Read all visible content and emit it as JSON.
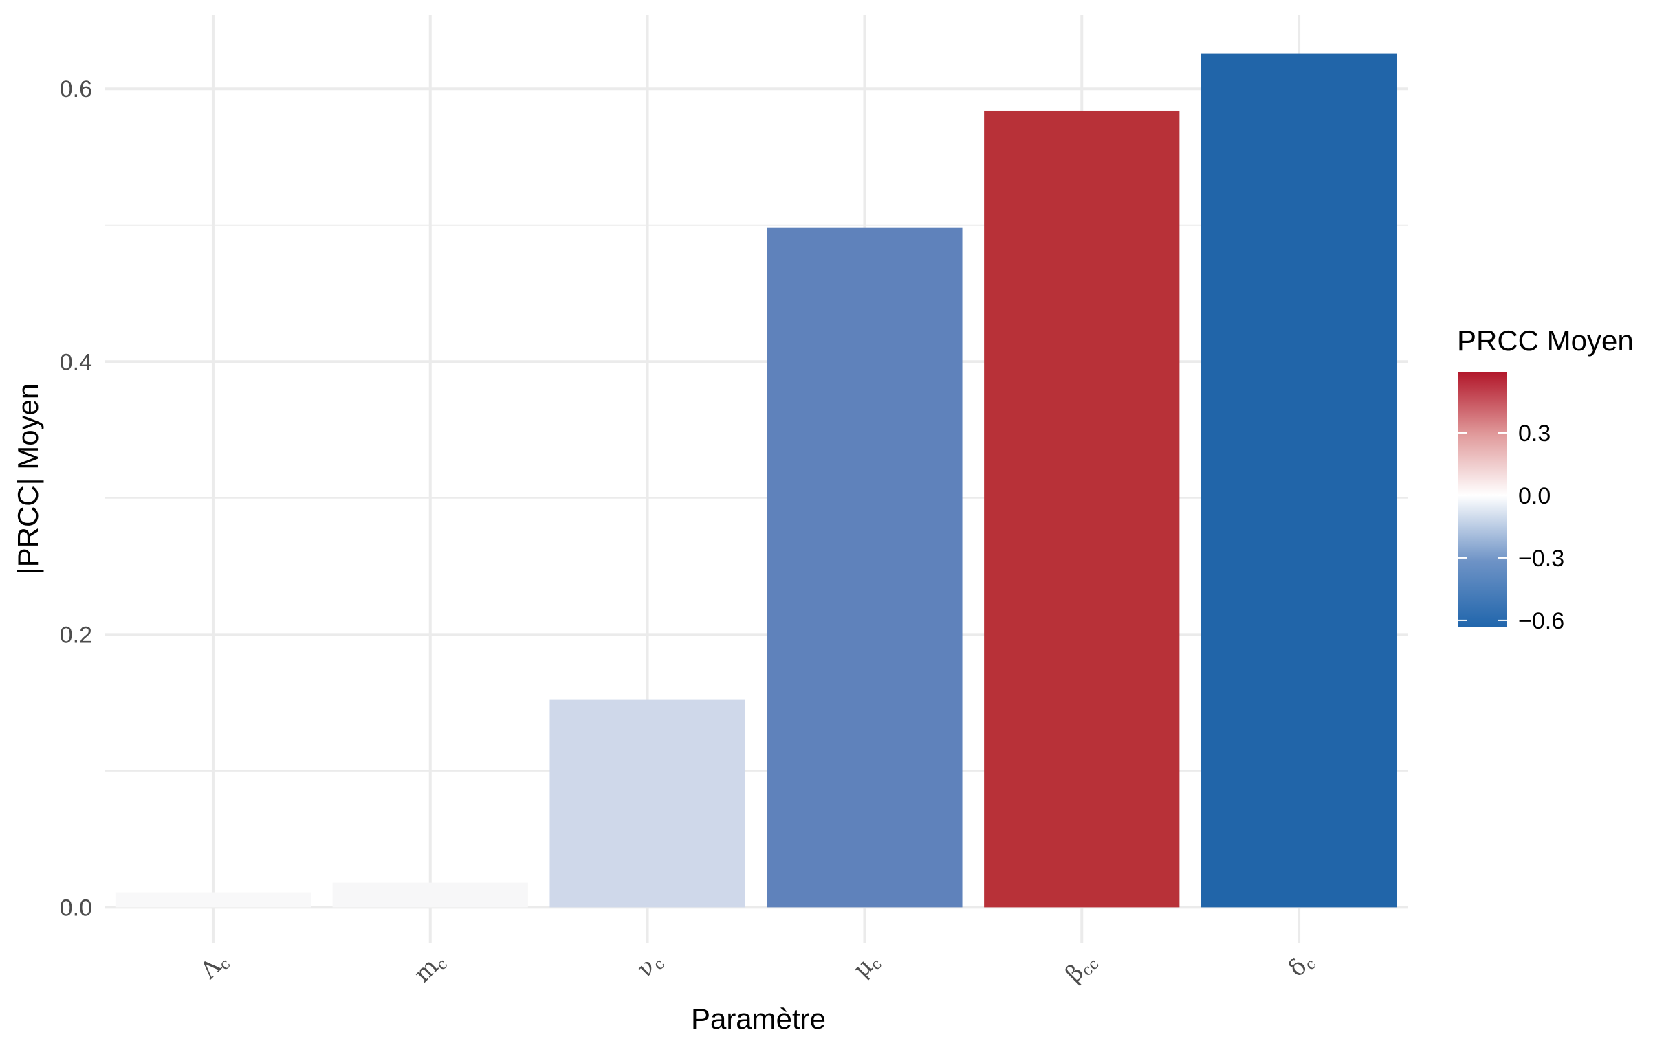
{
  "chart_data": {
    "type": "bar",
    "categories": [
      {
        "main": "Λ",
        "sub": "c"
      },
      {
        "main": "m",
        "sub": "c"
      },
      {
        "main": "ν",
        "sub": "c"
      },
      {
        "main": "μ",
        "sub": "c"
      },
      {
        "main": "β",
        "sub": "cc"
      },
      {
        "main": "δ",
        "sub": "c"
      }
    ],
    "values": [
      0.011,
      0.018,
      0.152,
      0.498,
      0.584,
      0.626
    ],
    "colors": [
      "#f8f8f9",
      "#f7f7f8",
      "#cfd8ea",
      "#5f82bb",
      "#b83138",
      "#2165a9"
    ],
    "xlabel": "Paramètre",
    "ylabel": "|PRCC| Moyen",
    "ylim": [
      -0.026,
      0.654
    ],
    "yticks": [
      0.0,
      0.2,
      0.4,
      0.6
    ],
    "ytick_labels": [
      "0.0",
      "0.2",
      "0.4",
      "0.6"
    ],
    "grid": true,
    "legend": {
      "title": "PRCC Moyen",
      "position": "right",
      "type": "colorbar",
      "range": [
        -0.63,
        0.59
      ],
      "ticks": [
        0.3,
        0.0,
        -0.3,
        -0.6
      ],
      "tick_labels": [
        "0.3",
        "0.0",
        "−0.3",
        "−0.6"
      ],
      "gradient_colors": [
        "#2166ac",
        "#ffffff",
        "#b2182b"
      ]
    }
  }
}
